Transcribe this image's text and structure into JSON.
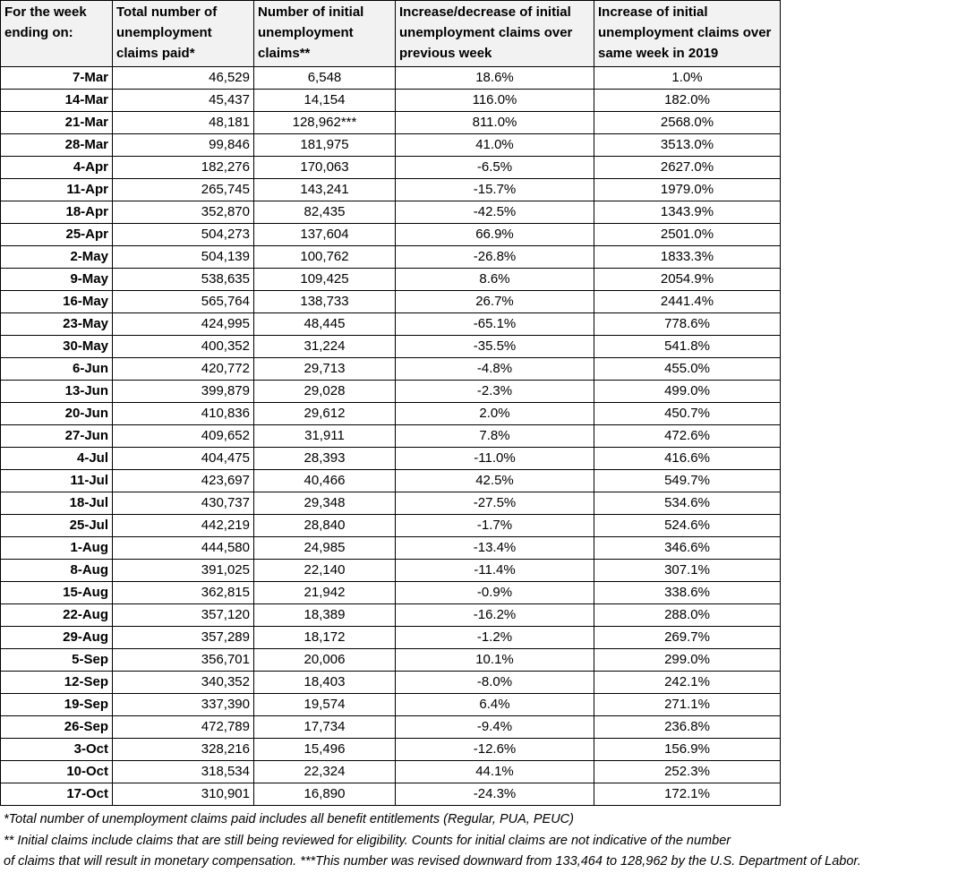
{
  "table": {
    "header": [
      "For the week ending on:",
      "Total number of unemployment claims paid*",
      "Number of initial unemployment claims**",
      "Increase/decrease of initial unemployment claims over previous week",
      "Increase of initial unemployment claims over same week in 2019"
    ],
    "rows": [
      [
        "7-Mar",
        "46,529",
        "6,548",
        "18.6%",
        "1.0%"
      ],
      [
        "14-Mar",
        "45,437",
        "14,154",
        "116.0%",
        "182.0%"
      ],
      [
        "21-Mar",
        "48,181",
        "128,962***",
        "811.0%",
        "2568.0%"
      ],
      [
        "28-Mar",
        "99,846",
        "181,975",
        "41.0%",
        "3513.0%"
      ],
      [
        "4-Apr",
        "182,276",
        "170,063",
        "-6.5%",
        "2627.0%"
      ],
      [
        "11-Apr",
        "265,745",
        "143,241",
        "-15.7%",
        "1979.0%"
      ],
      [
        "18-Apr",
        "352,870",
        "82,435",
        "-42.5%",
        "1343.9%"
      ],
      [
        "25-Apr",
        "504,273",
        "137,604",
        "66.9%",
        "2501.0%"
      ],
      [
        "2-May",
        "504,139",
        "100,762",
        "-26.8%",
        "1833.3%"
      ],
      [
        "9-May",
        "538,635",
        "109,425",
        "8.6%",
        "2054.9%"
      ],
      [
        "16-May",
        "565,764",
        "138,733",
        "26.7%",
        "2441.4%"
      ],
      [
        "23-May",
        "424,995",
        "48,445",
        "-65.1%",
        "778.6%"
      ],
      [
        "30-May",
        "400,352",
        "31,224",
        "-35.5%",
        "541.8%"
      ],
      [
        "6-Jun",
        "420,772",
        "29,713",
        "-4.8%",
        "455.0%"
      ],
      [
        "13-Jun",
        "399,879",
        "29,028",
        "-2.3%",
        "499.0%"
      ],
      [
        "20-Jun",
        "410,836",
        "29,612",
        "2.0%",
        "450.7%"
      ],
      [
        "27-Jun",
        "409,652",
        "31,911",
        "7.8%",
        "472.6%"
      ],
      [
        "4-Jul",
        "404,475",
        "28,393",
        "-11.0%",
        "416.6%"
      ],
      [
        "11-Jul",
        "423,697",
        "40,466",
        "42.5%",
        "549.7%"
      ],
      [
        "18-Jul",
        "430,737",
        "29,348",
        "-27.5%",
        "534.6%"
      ],
      [
        "25-Jul",
        "442,219",
        "28,840",
        "-1.7%",
        "524.6%"
      ],
      [
        "1-Aug",
        "444,580",
        "24,985",
        "-13.4%",
        "346.6%"
      ],
      [
        "8-Aug",
        "391,025",
        "22,140",
        "-11.4%",
        "307.1%"
      ],
      [
        "15-Aug",
        "362,815",
        "21,942",
        "-0.9%",
        "338.6%"
      ],
      [
        "22-Aug",
        "357,120",
        "18,389",
        "-16.2%",
        "288.0%"
      ],
      [
        "29-Aug",
        "357,289",
        "18,172",
        "-1.2%",
        "269.7%"
      ],
      [
        "5-Sep",
        "356,701",
        "20,006",
        "10.1%",
        "299.0%"
      ],
      [
        "12-Sep",
        "340,352",
        "18,403",
        "-8.0%",
        "242.1%"
      ],
      [
        "19-Sep",
        "337,390",
        "19,574",
        "6.4%",
        "271.1%"
      ],
      [
        "26-Sep",
        "472,789",
        "17,734",
        "-9.4%",
        "236.8%"
      ],
      [
        "3-Oct",
        "328,216",
        "15,496",
        "-12.6%",
        "156.9%"
      ],
      [
        "10-Oct",
        "318,534",
        "22,324",
        "44.1%",
        "252.3%"
      ],
      [
        "17-Oct",
        "310,901",
        "16,890",
        "-24.3%",
        "172.1%"
      ]
    ]
  },
  "footnotes": [
    "*Total number of unemployment claims paid includes all benefit entitlements (Regular, PUA, PEUC)",
    "** Initial claims include claims that are still being reviewed for eligibility. Counts for initial claims are not indicative of the number",
    " of claims that will result in monetary compensation. ***This number was revised downward from 133,464 to 128,962 by the U.S. Department of Labor."
  ]
}
